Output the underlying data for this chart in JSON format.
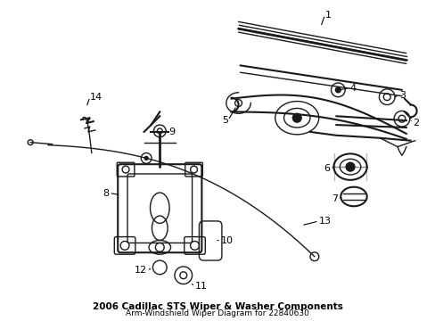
{
  "title": "2006 Cadillac STS Wiper & Washer Components",
  "subtitle": "Arm-Windshield Wiper Diagram for 22840630",
  "bg_color": "#ffffff",
  "line_color": "#1a1a1a",
  "label_color": "#000000",
  "title_fontsize": 7.5,
  "label_fontsize": 8,
  "fig_width": 4.89,
  "fig_height": 3.6,
  "dpi": 100
}
